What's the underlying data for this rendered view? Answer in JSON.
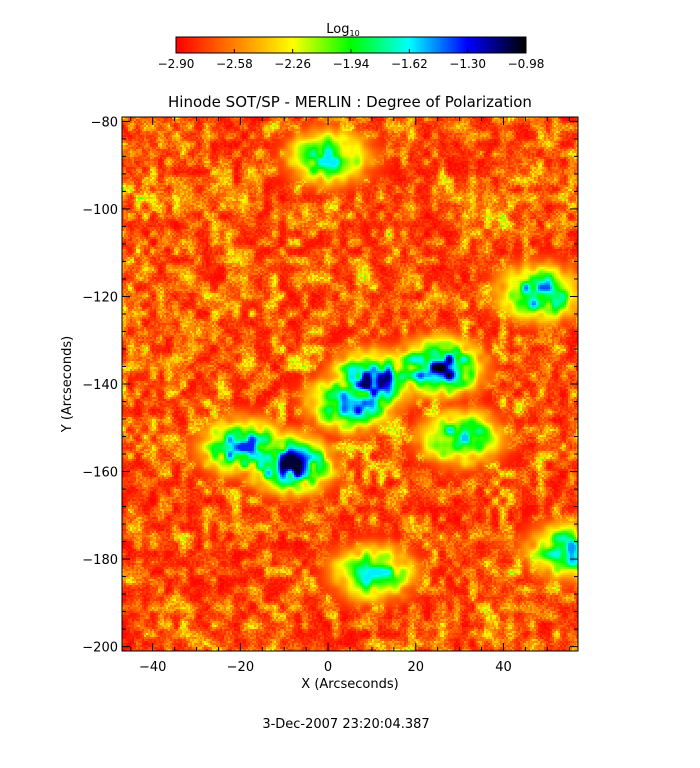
{
  "chart_data": {
    "type": "heatmap",
    "title": "Hinode SOT/SP - MERLIN : Degree of Polarization",
    "xlabel": "X (Arcseconds)",
    "ylabel": "Y (Arcseconds)",
    "xlim": [
      -47,
      57
    ],
    "ylim": [
      -201,
      -79
    ],
    "x_ticks": [
      -40,
      -20,
      0,
      20,
      40
    ],
    "y_ticks": [
      -80,
      -100,
      -120,
      -140,
      -160,
      -180,
      -200
    ],
    "x_tick_labels": [
      "−40",
      "−20",
      "0",
      "20",
      "40"
    ],
    "y_tick_labels": [
      "−80",
      "−100",
      "−120",
      "−140",
      "−160",
      "−180",
      "−200"
    ],
    "colorbar": {
      "label_base": "Log",
      "label_subscript": "10",
      "range": [
        -2.9,
        -0.98
      ],
      "ticks": [
        -2.9,
        -2.58,
        -2.26,
        -1.94,
        -1.62,
        -1.3,
        -0.98
      ],
      "tick_labels": [
        "−2.90",
        "−2.58",
        "−2.26",
        "−1.94",
        "−1.62",
        "−1.30",
        "−0.98"
      ],
      "colormap": [
        "#ff0000",
        "#ff8000",
        "#ffff00",
        "#00ff00",
        "#00ffff",
        "#0000ff",
        "#000000"
      ]
    },
    "high_polarization_regions": [
      {
        "x": 25,
        "y": -136,
        "level": -1.0
      },
      {
        "x": 10,
        "y": -139,
        "level": -1.1
      },
      {
        "x": 5,
        "y": -144,
        "level": -1.25
      },
      {
        "x": -9,
        "y": -158,
        "level": -1.05
      },
      {
        "x": -20,
        "y": -154,
        "level": -1.35
      },
      {
        "x": 48,
        "y": -119,
        "level": -1.4
      },
      {
        "x": 10,
        "y": -183,
        "level": -1.6
      },
      {
        "x": 30,
        "y": -152,
        "level": -1.55
      },
      {
        "x": 55,
        "y": -178,
        "level": -1.5
      },
      {
        "x": 0,
        "y": -88,
        "level": -1.6
      }
    ],
    "timestamp": "3-Dec-2007 23:20:04.387"
  }
}
